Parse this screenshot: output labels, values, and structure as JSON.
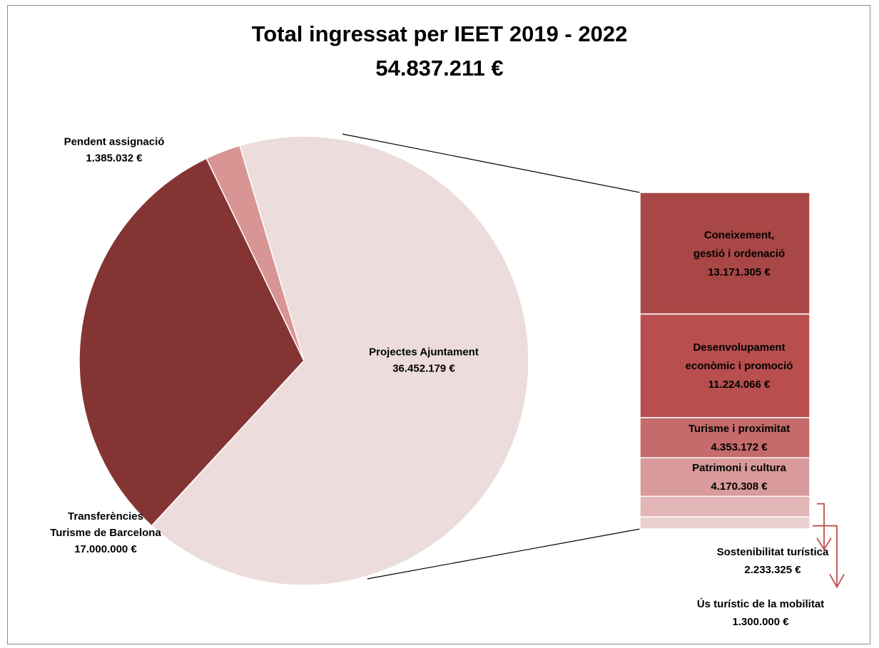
{
  "chart_data": {
    "type": "pie",
    "title": "Total ingressat per IEET 2019 - 2022",
    "subtitle": "54.837.211 €",
    "slices": [
      {
        "label": "Projectes Ajuntament",
        "value_label": "36.452.179 €",
        "value": 36452179,
        "color": "#ecdcdc",
        "label_color": "#000000"
      },
      {
        "label": "Transferències Turisme de Barcelona",
        "label_lines": [
          "Transferències",
          "Turisme de Barcelona"
        ],
        "value_label": "17.000.000 €",
        "value": 17000000,
        "color": "#853434",
        "label_color": "#000000"
      },
      {
        "label": "Pendent assignació",
        "value_label": "1.385.032 €",
        "value": 1385032,
        "color": "#d99594",
        "label_color": "#000000"
      }
    ],
    "breakdown": {
      "parent": "Projectes Ajuntament",
      "segments": [
        {
          "label": "Coneixement, gestió i ordenació",
          "label_lines": [
            "Coneixement,",
            "gestió i ordenació"
          ],
          "value_label": "13.171.305 €",
          "value": 13171305,
          "color": "#a84745",
          "label_color": "#ffffff"
        },
        {
          "label": "Desenvolupament econòmic i promoció",
          "label_lines": [
            "Desenvolupament",
            "econòmic i promoció"
          ],
          "value_label": "11.224.066 €",
          "value": 11224066,
          "color": "#b84e4e",
          "label_color": "#ffffff"
        },
        {
          "label": "Turisme i proximitat",
          "label_lines": [
            "Turisme i proximitat"
          ],
          "value_label": "4.353.172 €",
          "value": 4353172,
          "color": "#c56b6b",
          "label_color": "#ffffff"
        },
        {
          "label": "Patrimoni i cultura",
          "label_lines": [
            "Patrimoni i cultura"
          ],
          "value_label": "4.170.308 €",
          "value": 4170308,
          "color": "#d89a9a",
          "label_color": "#ffffff"
        },
        {
          "label": "Sostenibilitat turística",
          "label_lines": [
            "Sostenibilitat turística"
          ],
          "value_label": "2.233.325 €",
          "value": 2233325,
          "color": "#e2b6b6",
          "label_color": "#000000"
        },
        {
          "label": "Ús turístic de la mobilitat",
          "label_lines": [
            "Ús turístic de la mobilitat"
          ],
          "value_label": "1.300.000 €",
          "value": 1300000,
          "color": "#ecd0d0",
          "label_color": "#000000"
        }
      ]
    },
    "arrow_color": "#c0504d"
  }
}
